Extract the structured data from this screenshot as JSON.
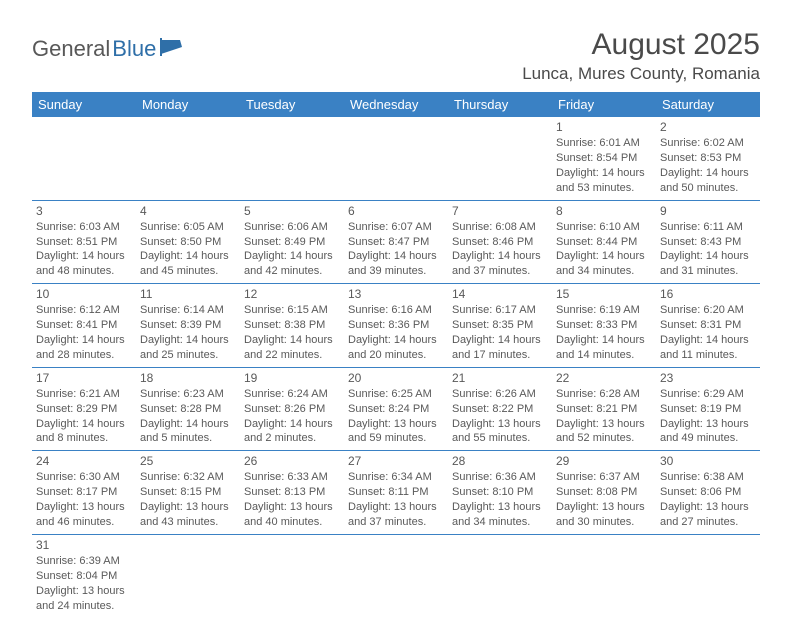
{
  "logo": {
    "text1": "General",
    "text2": "Blue"
  },
  "title": "August 2025",
  "location": "Lunca, Mures County, Romania",
  "colors": {
    "header_bg": "#3a81c4",
    "header_text": "#ffffff",
    "border": "#3a81c4",
    "text": "#595959",
    "logo_gray": "#585858",
    "logo_blue": "#2f6fa8"
  },
  "day_headers": [
    "Sunday",
    "Monday",
    "Tuesday",
    "Wednesday",
    "Thursday",
    "Friday",
    "Saturday"
  ],
  "weeks": [
    [
      null,
      null,
      null,
      null,
      null,
      {
        "n": "1",
        "sr": "Sunrise: 6:01 AM",
        "ss": "Sunset: 8:54 PM",
        "d1": "Daylight: 14 hours",
        "d2": "and 53 minutes."
      },
      {
        "n": "2",
        "sr": "Sunrise: 6:02 AM",
        "ss": "Sunset: 8:53 PM",
        "d1": "Daylight: 14 hours",
        "d2": "and 50 minutes."
      }
    ],
    [
      {
        "n": "3",
        "sr": "Sunrise: 6:03 AM",
        "ss": "Sunset: 8:51 PM",
        "d1": "Daylight: 14 hours",
        "d2": "and 48 minutes."
      },
      {
        "n": "4",
        "sr": "Sunrise: 6:05 AM",
        "ss": "Sunset: 8:50 PM",
        "d1": "Daylight: 14 hours",
        "d2": "and 45 minutes."
      },
      {
        "n": "5",
        "sr": "Sunrise: 6:06 AM",
        "ss": "Sunset: 8:49 PM",
        "d1": "Daylight: 14 hours",
        "d2": "and 42 minutes."
      },
      {
        "n": "6",
        "sr": "Sunrise: 6:07 AM",
        "ss": "Sunset: 8:47 PM",
        "d1": "Daylight: 14 hours",
        "d2": "and 39 minutes."
      },
      {
        "n": "7",
        "sr": "Sunrise: 6:08 AM",
        "ss": "Sunset: 8:46 PM",
        "d1": "Daylight: 14 hours",
        "d2": "and 37 minutes."
      },
      {
        "n": "8",
        "sr": "Sunrise: 6:10 AM",
        "ss": "Sunset: 8:44 PM",
        "d1": "Daylight: 14 hours",
        "d2": "and 34 minutes."
      },
      {
        "n": "9",
        "sr": "Sunrise: 6:11 AM",
        "ss": "Sunset: 8:43 PM",
        "d1": "Daylight: 14 hours",
        "d2": "and 31 minutes."
      }
    ],
    [
      {
        "n": "10",
        "sr": "Sunrise: 6:12 AM",
        "ss": "Sunset: 8:41 PM",
        "d1": "Daylight: 14 hours",
        "d2": "and 28 minutes."
      },
      {
        "n": "11",
        "sr": "Sunrise: 6:14 AM",
        "ss": "Sunset: 8:39 PM",
        "d1": "Daylight: 14 hours",
        "d2": "and 25 minutes."
      },
      {
        "n": "12",
        "sr": "Sunrise: 6:15 AM",
        "ss": "Sunset: 8:38 PM",
        "d1": "Daylight: 14 hours",
        "d2": "and 22 minutes."
      },
      {
        "n": "13",
        "sr": "Sunrise: 6:16 AM",
        "ss": "Sunset: 8:36 PM",
        "d1": "Daylight: 14 hours",
        "d2": "and 20 minutes."
      },
      {
        "n": "14",
        "sr": "Sunrise: 6:17 AM",
        "ss": "Sunset: 8:35 PM",
        "d1": "Daylight: 14 hours",
        "d2": "and 17 minutes."
      },
      {
        "n": "15",
        "sr": "Sunrise: 6:19 AM",
        "ss": "Sunset: 8:33 PM",
        "d1": "Daylight: 14 hours",
        "d2": "and 14 minutes."
      },
      {
        "n": "16",
        "sr": "Sunrise: 6:20 AM",
        "ss": "Sunset: 8:31 PM",
        "d1": "Daylight: 14 hours",
        "d2": "and 11 minutes."
      }
    ],
    [
      {
        "n": "17",
        "sr": "Sunrise: 6:21 AM",
        "ss": "Sunset: 8:29 PM",
        "d1": "Daylight: 14 hours",
        "d2": "and 8 minutes."
      },
      {
        "n": "18",
        "sr": "Sunrise: 6:23 AM",
        "ss": "Sunset: 8:28 PM",
        "d1": "Daylight: 14 hours",
        "d2": "and 5 minutes."
      },
      {
        "n": "19",
        "sr": "Sunrise: 6:24 AM",
        "ss": "Sunset: 8:26 PM",
        "d1": "Daylight: 14 hours",
        "d2": "and 2 minutes."
      },
      {
        "n": "20",
        "sr": "Sunrise: 6:25 AM",
        "ss": "Sunset: 8:24 PM",
        "d1": "Daylight: 13 hours",
        "d2": "and 59 minutes."
      },
      {
        "n": "21",
        "sr": "Sunrise: 6:26 AM",
        "ss": "Sunset: 8:22 PM",
        "d1": "Daylight: 13 hours",
        "d2": "and 55 minutes."
      },
      {
        "n": "22",
        "sr": "Sunrise: 6:28 AM",
        "ss": "Sunset: 8:21 PM",
        "d1": "Daylight: 13 hours",
        "d2": "and 52 minutes."
      },
      {
        "n": "23",
        "sr": "Sunrise: 6:29 AM",
        "ss": "Sunset: 8:19 PM",
        "d1": "Daylight: 13 hours",
        "d2": "and 49 minutes."
      }
    ],
    [
      {
        "n": "24",
        "sr": "Sunrise: 6:30 AM",
        "ss": "Sunset: 8:17 PM",
        "d1": "Daylight: 13 hours",
        "d2": "and 46 minutes."
      },
      {
        "n": "25",
        "sr": "Sunrise: 6:32 AM",
        "ss": "Sunset: 8:15 PM",
        "d1": "Daylight: 13 hours",
        "d2": "and 43 minutes."
      },
      {
        "n": "26",
        "sr": "Sunrise: 6:33 AM",
        "ss": "Sunset: 8:13 PM",
        "d1": "Daylight: 13 hours",
        "d2": "and 40 minutes."
      },
      {
        "n": "27",
        "sr": "Sunrise: 6:34 AM",
        "ss": "Sunset: 8:11 PM",
        "d1": "Daylight: 13 hours",
        "d2": "and 37 minutes."
      },
      {
        "n": "28",
        "sr": "Sunrise: 6:36 AM",
        "ss": "Sunset: 8:10 PM",
        "d1": "Daylight: 13 hours",
        "d2": "and 34 minutes."
      },
      {
        "n": "29",
        "sr": "Sunrise: 6:37 AM",
        "ss": "Sunset: 8:08 PM",
        "d1": "Daylight: 13 hours",
        "d2": "and 30 minutes."
      },
      {
        "n": "30",
        "sr": "Sunrise: 6:38 AM",
        "ss": "Sunset: 8:06 PM",
        "d1": "Daylight: 13 hours",
        "d2": "and 27 minutes."
      }
    ],
    [
      {
        "n": "31",
        "sr": "Sunrise: 6:39 AM",
        "ss": "Sunset: 8:04 PM",
        "d1": "Daylight: 13 hours",
        "d2": "and 24 minutes."
      },
      null,
      null,
      null,
      null,
      null,
      null
    ]
  ]
}
